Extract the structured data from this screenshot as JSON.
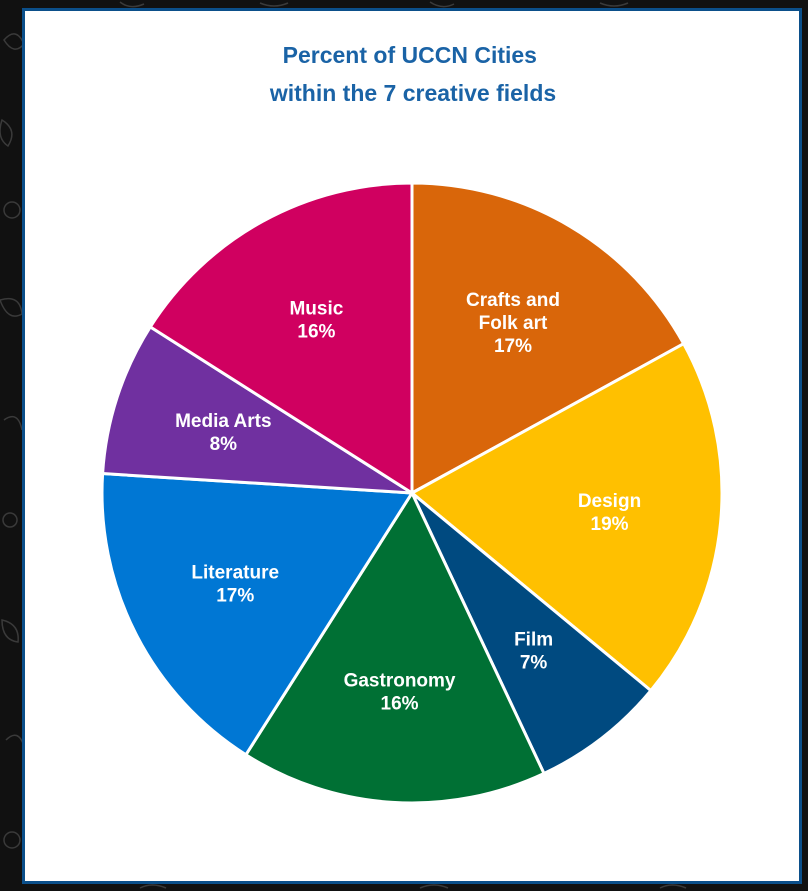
{
  "chart_data": {
    "type": "pie",
    "title": [
      "Percent of UCCN Cities",
      "within the 7 creative fields"
    ],
    "slices": [
      {
        "label": [
          "Crafts and",
          "Folk art"
        ],
        "value": 17,
        "value_label": "17%",
        "color": "#d9660a"
      },
      {
        "label": [
          "Design"
        ],
        "value": 19,
        "value_label": "19%",
        "color": "#ffc000"
      },
      {
        "label": [
          "Film"
        ],
        "value": 7,
        "value_label": "7%",
        "color": "#004a80"
      },
      {
        "label": [
          "Gastronomy"
        ],
        "value": 16,
        "value_label": "16%",
        "color": "#007034"
      },
      {
        "label": [
          "Literature"
        ],
        "value": 17,
        "value_label": "17%",
        "color": "#0077d4"
      },
      {
        "label": [
          "Media Arts"
        ],
        "value": 8,
        "value_label": "8%",
        "color": "#7030a0"
      },
      {
        "label": [
          "Music"
        ],
        "value": 16,
        "value_label": "16%",
        "color": "#d00060"
      }
    ],
    "start": "12 o'clock",
    "direction": "clockwise",
    "slice_border_color": "#ffffff",
    "label_color": "#ffffff",
    "title_color": "#1a63a6",
    "frame_color": "#0b4f8a",
    "background_color": "#111111"
  }
}
